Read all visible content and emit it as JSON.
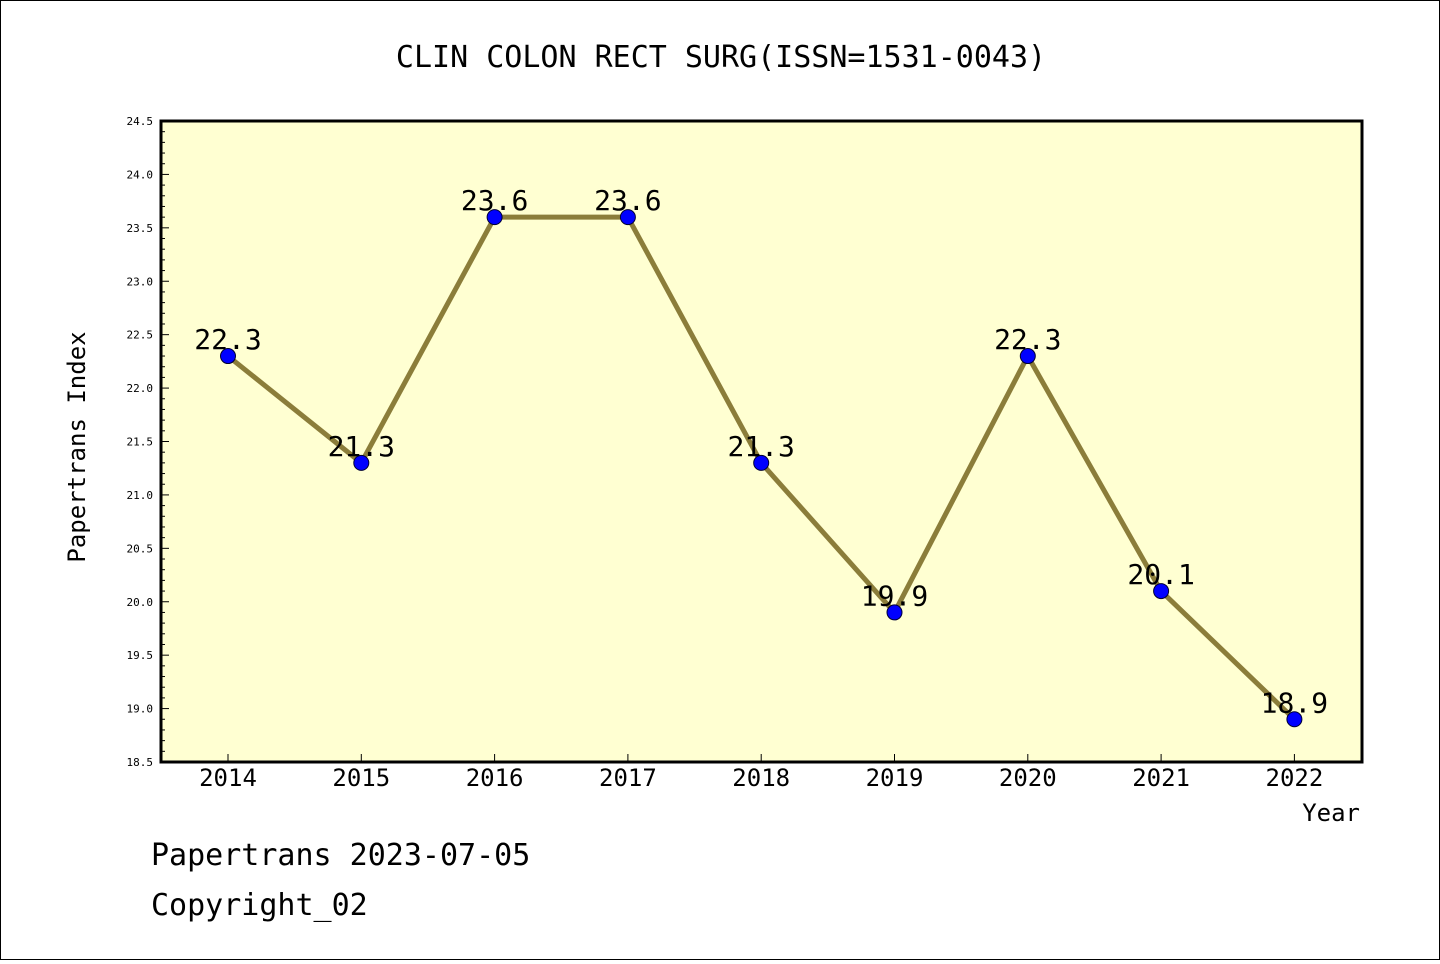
{
  "chart_data": {
    "type": "line",
    "title": "CLIN COLON RECT SURG(ISSN=1531-0043)",
    "xlabel": "Year",
    "ylabel": "Papertrans Index",
    "categories": [
      "2014",
      "2015",
      "2016",
      "2017",
      "2018",
      "2019",
      "2020",
      "2021",
      "2022"
    ],
    "values": [
      22.3,
      21.3,
      23.6,
      23.6,
      21.3,
      19.9,
      22.3,
      20.1,
      18.9
    ],
    "value_labels": [
      "22.3",
      "21.3",
      "23.6",
      "23.6",
      "21.3",
      "19.9",
      "22.3",
      "20.1",
      "18.9"
    ],
    "ylim": [
      18.5,
      24.5
    ],
    "yticks": [
      "18.5",
      "19.0",
      "19.5",
      "20.0",
      "20.5",
      "21.0",
      "21.5",
      "22.0",
      "22.5",
      "23.0",
      "23.5",
      "24.0",
      "24.5"
    ],
    "grid": false,
    "colors": {
      "plot_background": "#ffffd2",
      "line": "#8b7d3a",
      "marker": "#0000ff"
    }
  },
  "footer": {
    "line1": "Papertrans 2023-07-05",
    "line2": "Copyright_02"
  }
}
